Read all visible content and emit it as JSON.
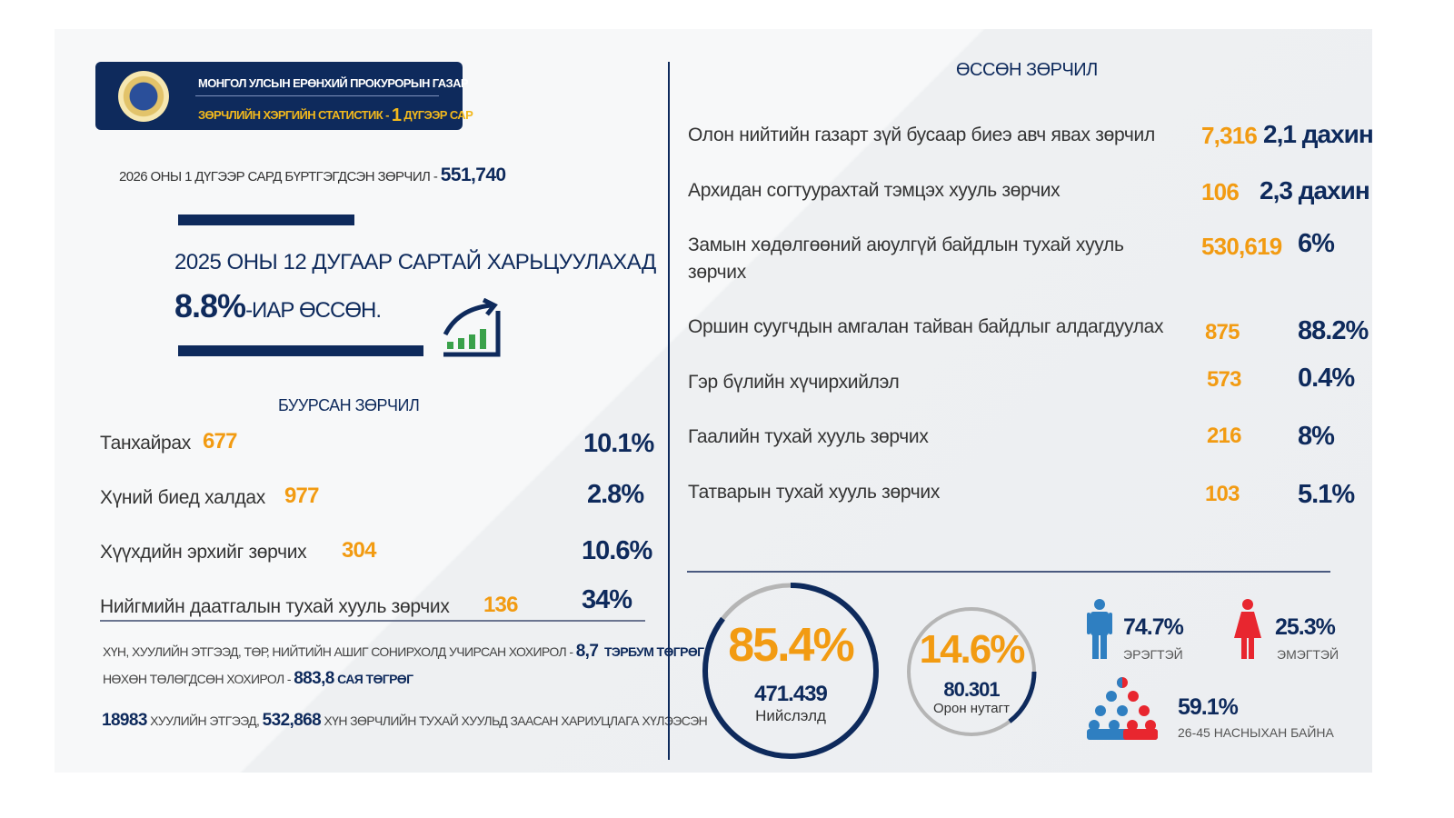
{
  "header": {
    "org": "МОНГОЛ УЛСЫН ЕРӨНХИЙ ПРОКУРОРЫН ГАЗАР",
    "subtitle_prefix": "ЗӨРЧЛИЙН ХЭРГИЙН СТАТИСТИК -",
    "subtitle_num": "1",
    "subtitle_suffix": "ДҮГЭЭР САР"
  },
  "total": {
    "label": "2026 ОНЫ 1 ДҮГЭЭР САРД БҮРТГЭГДСЭН ЗӨРЧИЛ -",
    "value": "551,740"
  },
  "comparison": {
    "text": "2025 ОНЫ 12 ДУГААР САРТАЙ ХАРЬЦУУЛАХАД",
    "value": "8.8%",
    "suffix": "-ИАР ӨССӨН."
  },
  "decreased": {
    "title": "БУУРСАН ЗӨРЧИЛ",
    "items": [
      {
        "label": "Танхайрах",
        "count": "677",
        "pct": "10.1%"
      },
      {
        "label": "Хүний биед халдах",
        "count": "977",
        "pct": "2.8%"
      },
      {
        "label": "Хүүхдийн эрхийг зөрчих",
        "count": "304",
        "pct": "10.6%"
      },
      {
        "label": "Нийгмийн даатгалын тухай хууль зөрчих",
        "count": "136",
        "pct": "34%"
      }
    ]
  },
  "damages": {
    "line1_label": "ХҮН, ХУУЛИЙН ЭТГЭЭД, ТӨР, НИЙТИЙН АШИГ СОНИРХОЛД УЧИРСАН ХОХИРОЛ -",
    "line1_value": "8,7",
    "line1_unit": "ТЭРБУМ ТӨГРӨГ",
    "line2_label": "НӨХӨН ТӨЛӨГДСӨН ХОХИРОЛ -",
    "line2_value": "883,8",
    "line2_unit": "САЯ ТӨГРӨГ",
    "line3_v1": "18983",
    "line3_t1": "ХУУЛИЙН ЭТГЭЭД,",
    "line3_v2": "532,868",
    "line3_t2": "ХҮН ЗӨРЧЛИЙН ТУХАЙ ХУУЛЬД ЗААСАН ХАРИУЦЛАГА ХҮЛЭЭСЭН"
  },
  "increased": {
    "title": "ӨССӨН ЗӨРЧИЛ",
    "items": [
      {
        "label": "Олон нийтийн газарт зүй бусаар биеэ авч явах зөрчил",
        "count": "7,316",
        "change": "2,1 дахин"
      },
      {
        "label": "Архидан согтуурахтай тэмцэх хууль зөрчих",
        "count": "106",
        "change": "2,3 дахин"
      },
      {
        "label": "Замын хөдөлгөөний аюулгүй байдлын тухай хууль зөрчих",
        "count": "530,619",
        "change": "6%"
      },
      {
        "label": "Оршин суугчдын амгалан тайван байдлыг алдагдуулах",
        "count": "875",
        "change": "88.2%"
      },
      {
        "label": "Гэр бүлийн хүчирхийлэл",
        "count": "573",
        "change": "0.4%"
      },
      {
        "label": "Гаалийн тухай хууль зөрчих",
        "count": "216",
        "change": "8%"
      },
      {
        "label": "Татварын тухай хууль зөрчих",
        "count": "103",
        "change": "5.1%"
      }
    ]
  },
  "location": {
    "capital": {
      "pct": "85.4%",
      "value": "471.439",
      "label": "Нийслэлд",
      "fraction": 0.854
    },
    "rural": {
      "pct": "14.6%",
      "value": "80.301",
      "label": "Орон нутагт",
      "fraction": 0.146
    }
  },
  "gender": {
    "male": {
      "pct": "74.7%",
      "label": "ЭРЭГТЭЙ"
    },
    "female": {
      "pct": "25.3%",
      "label": "ЭМЭГТЭЙ"
    },
    "age": {
      "pct": "59.1%",
      "label": "26-45 НАСНЫХАН БАЙНА"
    }
  },
  "colors": {
    "navy": "#0e2a5c",
    "orange": "#f29b12",
    "male": "#2f7fc1",
    "female": "#e8262f"
  }
}
